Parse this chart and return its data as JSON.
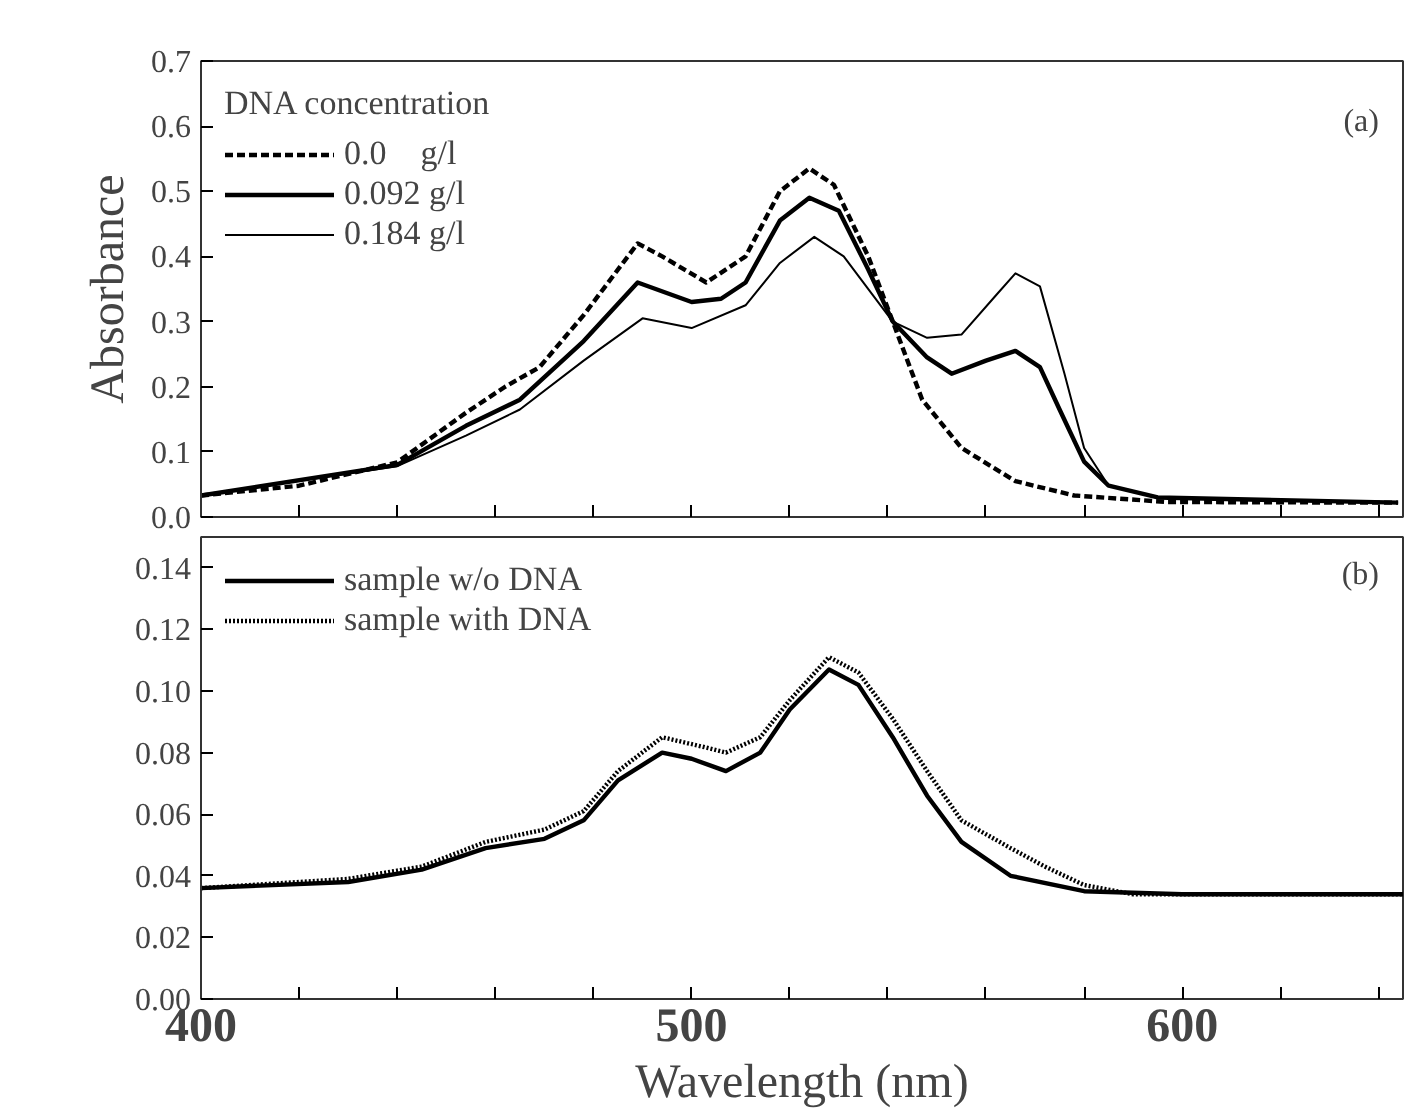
{
  "chart_data": [
    {
      "type": "line",
      "ylabel": "Absorbance",
      "legend_title": "DNA concentration",
      "legend": "top left",
      "grid": false,
      "tick_labels": "y",
      "annotations": [
        "(a)"
      ],
      "xlim": [
        400,
        645
      ],
      "xticks": [
        400,
        {
          "value": 420,
          "label": null
        },
        {
          "value": 440,
          "label": null
        },
        {
          "value": 460,
          "label": null
        },
        {
          "value": 480,
          "label": null
        },
        500,
        {
          "value": 520,
          "label": null
        },
        {
          "value": 540,
          "label": null
        },
        {
          "value": 560,
          "label": null
        },
        {
          "value": 580,
          "label": null
        },
        600,
        {
          "value": 620,
          "label": null
        },
        {
          "value": 640,
          "label": null
        }
      ],
      "ylim": [
        0,
        0.7
      ],
      "yticks": [
        {
          "value": 0,
          "label": "0.0"
        },
        0.1,
        0.2,
        0.3,
        0.4,
        0.5,
        0.6,
        0.7
      ],
      "series": [
        {
          "name": "0.0    g/l",
          "color": "#000000",
          "line_style": "dashed",
          "x": [
            400,
            420,
            440,
            454,
            462,
            469,
            478,
            489,
            494,
            503,
            511,
            518,
            524,
            529,
            536,
            541,
            547,
            555,
            566,
            578,
            597,
            644
          ],
          "values": [
            0.033,
            0.048,
            0.084,
            0.16,
            0.2,
            0.23,
            0.31,
            0.42,
            0.4,
            0.36,
            0.4,
            0.5,
            0.535,
            0.51,
            0.4,
            0.3,
            0.18,
            0.106,
            0.055,
            0.033,
            0.023,
            0.022
          ]
        },
        {
          "name": "0.092 g/l",
          "color": "#000000",
          "line_style": "solid",
          "x": [
            400,
            440,
            454,
            465,
            478,
            489,
            500,
            506,
            511,
            518,
            524,
            530,
            536,
            541,
            548,
            553,
            560,
            566,
            571,
            575,
            580,
            585,
            595,
            644
          ],
          "values": [
            0.033,
            0.08,
            0.14,
            0.18,
            0.27,
            0.36,
            0.33,
            0.335,
            0.36,
            0.455,
            0.49,
            0.47,
            0.38,
            0.3,
            0.245,
            0.22,
            0.24,
            0.255,
            0.23,
            0.165,
            0.085,
            0.048,
            0.03,
            0.022
          ]
        },
        {
          "name": "0.184 g/l",
          "color": "#000000",
          "line_style": "solid",
          "x": [
            400,
            440,
            454,
            465,
            478,
            490,
            500,
            511,
            518,
            525,
            531,
            541,
            548,
            555,
            562,
            566,
            571,
            576,
            580,
            585,
            595,
            644
          ],
          "values": [
            0.033,
            0.078,
            0.125,
            0.165,
            0.24,
            0.305,
            0.29,
            0.325,
            0.39,
            0.43,
            0.4,
            0.3,
            0.275,
            0.28,
            0.34,
            0.374,
            0.354,
            0.22,
            0.106,
            0.048,
            0.03,
            0.022
          ]
        }
      ]
    },
    {
      "type": "line",
      "xlabel": "Wavelength (nm)",
      "legend": "top left",
      "grid": false,
      "annotations": [
        "(b)"
      ],
      "xlim": [
        400,
        645
      ],
      "xticks": [
        400,
        {
          "value": 420,
          "label": null
        },
        {
          "value": 440,
          "label": null
        },
        {
          "value": 460,
          "label": null
        },
        {
          "value": 480,
          "label": null
        },
        500,
        {
          "value": 520,
          "label": null
        },
        {
          "value": 540,
          "label": null
        },
        {
          "value": 560,
          "label": null
        },
        {
          "value": 580,
          "label": null
        },
        600,
        {
          "value": 620,
          "label": null
        },
        {
          "value": 640,
          "label": null
        }
      ],
      "ylim": [
        0,
        0.15
      ],
      "yticks": [
        {
          "value": 0,
          "label": "0.00"
        },
        {
          "value": 0.02,
          "label": "0.02"
        },
        {
          "value": 0.04,
          "label": "0.04"
        },
        {
          "value": 0.06,
          "label": "0.06"
        },
        {
          "value": 0.08,
          "label": "0.08"
        },
        {
          "value": 0.1,
          "label": "0.10"
        },
        {
          "value": 0.12,
          "label": "0.12"
        },
        {
          "value": 0.14,
          "label": "0.14"
        }
      ],
      "series": [
        {
          "name": "sample w/o DNA",
          "color": "#000000",
          "line_style": "solid",
          "x": [
            400,
            430,
            445,
            458,
            470,
            478,
            485,
            494,
            500,
            507,
            514,
            520,
            528,
            534,
            541,
            548,
            555,
            565,
            580,
            600,
            645
          ],
          "values": [
            0.036,
            0.038,
            0.042,
            0.049,
            0.052,
            0.058,
            0.071,
            0.08,
            0.078,
            0.074,
            0.08,
            0.094,
            0.107,
            0.102,
            0.085,
            0.066,
            0.051,
            0.04,
            0.035,
            0.034,
            0.034
          ]
        },
        {
          "name": "sample with DNA",
          "color": "#000000",
          "line_style": "dotted",
          "x": [
            400,
            430,
            445,
            458,
            470,
            478,
            485,
            494,
            502,
            507,
            514,
            520,
            528,
            534,
            541,
            548,
            555,
            565,
            572,
            580,
            590,
            645
          ],
          "values": [
            0.036,
            0.039,
            0.043,
            0.051,
            0.055,
            0.061,
            0.074,
            0.085,
            0.082,
            0.08,
            0.085,
            0.097,
            0.111,
            0.106,
            0.091,
            0.074,
            0.058,
            0.049,
            0.043,
            0.037,
            0.034,
            0.034
          ]
        }
      ]
    }
  ]
}
